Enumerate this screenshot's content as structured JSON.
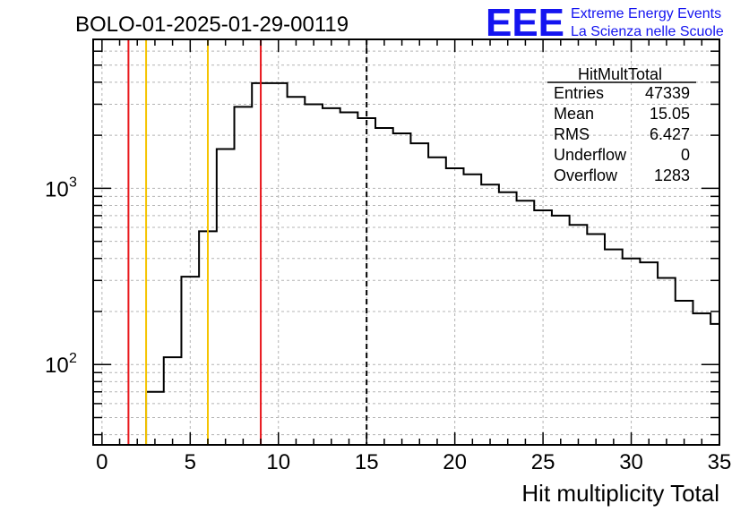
{
  "chart_data": {
    "type": "histogram",
    "title": "BOLO-01-2025-01-29-00119",
    "xlabel": "Hit multiplicity Total",
    "ylabel": "",
    "xlim": [
      -0.5,
      35
    ],
    "ylim": [
      35,
      7000
    ],
    "yscale": "log",
    "x_ticks": [
      0,
      5,
      10,
      15,
      20,
      25,
      30,
      35
    ],
    "y_ticks": [
      {
        "value": 100,
        "base": "10",
        "exp": "2"
      },
      {
        "value": 1000,
        "base": "10",
        "exp": "3"
      }
    ],
    "grid": true,
    "bin_width": 1,
    "bins_x_low": [
      2.5,
      3.5,
      4.5,
      5.5,
      6.5,
      7.5,
      8.5,
      9.5,
      10.5,
      11.5,
      12.5,
      13.5,
      14.5,
      15.5,
      16.5,
      17.5,
      18.5,
      19.5,
      20.5,
      21.5,
      22.5,
      23.5,
      24.5,
      25.5,
      26.5,
      27.5,
      28.5,
      29.5,
      30.5,
      31.5,
      32.5,
      33.5,
      34.5
    ],
    "counts": [
      70,
      110,
      315,
      570,
      1670,
      2900,
      3950,
      3950,
      3300,
      3000,
      2850,
      2700,
      2500,
      2200,
      2050,
      1800,
      1500,
      1300,
      1200,
      1050,
      950,
      850,
      750,
      700,
      620,
      550,
      450,
      400,
      380,
      310,
      230,
      195,
      170
    ],
    "vertical_lines": [
      {
        "x": 1.5,
        "color": "#e8161b",
        "style": "solid"
      },
      {
        "x": 2.5,
        "color": "#f5c400",
        "style": "solid"
      },
      {
        "x": 6.0,
        "color": "#f5c400",
        "style": "solid"
      },
      {
        "x": 9.0,
        "color": "#e8161b",
        "style": "solid"
      },
      {
        "x": 15.0,
        "color": "#000000",
        "style": "dashed"
      }
    ],
    "stats_box": {
      "title": "HitMultTotal",
      "rows": [
        {
          "label": "Entries",
          "value": "47339"
        },
        {
          "label": "Mean",
          "value": "15.05"
        },
        {
          "label": "RMS",
          "value": "6.427"
        },
        {
          "label": "Underflow",
          "value": "0"
        },
        {
          "label": "Overflow",
          "value": "1283"
        }
      ]
    }
  },
  "logo": {
    "text": "EEE",
    "line1": "Extreme Energy Events",
    "line2": "La Scienza nelle Scuole",
    "color": "#1414f0"
  }
}
